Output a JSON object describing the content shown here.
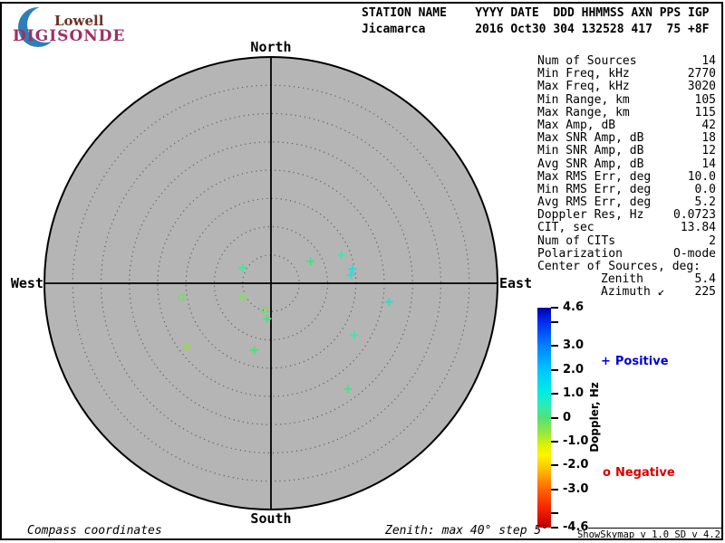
{
  "window": {
    "background": "#ffffff",
    "frame_color": "#000000",
    "plot_fill": "#b5b5b5",
    "ring_color": "#606060"
  },
  "logo": {
    "line1": "Lowell",
    "line2": "DIGISONDE",
    "crescent_color": "#2e7fb8",
    "lowell_color": "#6b3226",
    "digisonde_color": "#9c3166"
  },
  "header": {
    "columns": [
      {
        "label": "STATION NAME",
        "value": "Jicamarca",
        "width": 15,
        "align": "left"
      },
      {
        "label": "YYYY",
        "value": "2016",
        "width": 4,
        "align": "right"
      },
      {
        "label": "DATE",
        "value": "Oct30",
        "width": 5,
        "align": "left"
      },
      {
        "label": "DDD",
        "value": "304",
        "width": 3,
        "align": "right"
      },
      {
        "label": "HHMMSS",
        "value": "132528",
        "width": 6,
        "align": "right"
      },
      {
        "label": "AXN",
        "value": "417",
        "width": 3,
        "align": "right"
      },
      {
        "label": "PPS",
        "value": "75",
        "width": 3,
        "align": "right"
      },
      {
        "label": "IGP",
        "value": "+8F",
        "width": 3,
        "align": "right"
      }
    ]
  },
  "plot": {
    "north": "North",
    "south": "South",
    "west": "West",
    "east": "East"
  },
  "stats": {
    "rows": [
      {
        "label": "Num of Sources",
        "value": "14",
        "indent": false
      },
      {
        "label": "Min Freq, kHz",
        "value": "2770",
        "indent": false
      },
      {
        "label": "Max Freq, kHz",
        "value": "3020",
        "indent": false
      },
      {
        "label": "Min Range, km",
        "value": "105",
        "indent": false
      },
      {
        "label": "Max Range, km",
        "value": "115",
        "indent": false
      },
      {
        "label": "Max Amp, dB",
        "value": "42",
        "indent": false
      },
      {
        "label": "Max SNR Amp, dB",
        "value": "18",
        "indent": false
      },
      {
        "label": "Min SNR Amp, dB",
        "value": "12",
        "indent": false
      },
      {
        "label": "Avg SNR Amp, dB",
        "value": "14",
        "indent": false
      },
      {
        "label": "Max RMS Err, deg",
        "value": "10.0",
        "indent": false
      },
      {
        "label": "Min RMS Err, deg",
        "value": "0.0",
        "indent": false
      },
      {
        "label": "Avg RMS Err, deg",
        "value": "5.2",
        "indent": false
      },
      {
        "label": "Doppler Res, Hz",
        "value": "0.0723",
        "indent": false
      },
      {
        "label": "CIT, sec",
        "value": "13.84",
        "indent": false
      },
      {
        "label": "Num of CITs",
        "value": "2",
        "indent": false
      },
      {
        "label": "Polarization",
        "value": "O-mode",
        "indent": false
      },
      {
        "label": "Center of Sources, deg:",
        "value": "",
        "indent": false
      },
      {
        "label": "Zenith",
        "value": "5.4",
        "indent": true
      },
      {
        "label": "Azimuth ↙",
        "value": "225",
        "indent": true
      }
    ]
  },
  "colorbar": {
    "title": "Doppler, Hz",
    "range": [
      -4.6,
      4.6
    ],
    "ticks": [
      {
        "value": 4.6,
        "label": "4.6"
      },
      {
        "value": 4.0,
        "label": ""
      },
      {
        "value": 3.0,
        "label": "3.0"
      },
      {
        "value": 2.0,
        "label": "2.0"
      },
      {
        "value": 1.0,
        "label": "1.0"
      },
      {
        "value": 0,
        "label": "0"
      },
      {
        "value": -1.0,
        "label": "-1.0"
      },
      {
        "value": -2.0,
        "label": "-2.0"
      },
      {
        "value": -3.0,
        "label": "-3.0"
      },
      {
        "value": -4.0,
        "label": ""
      },
      {
        "value": -4.6,
        "label": "-4.6"
      }
    ],
    "gradient": [
      [
        0,
        "#0000a8"
      ],
      [
        6,
        "#0028f0"
      ],
      [
        17,
        "#0080ff"
      ],
      [
        28,
        "#00c4ff"
      ],
      [
        38,
        "#00ebe4"
      ],
      [
        45,
        "#2fecac"
      ],
      [
        50,
        "#55e078"
      ],
      [
        57,
        "#97e73e"
      ],
      [
        63,
        "#e2f200"
      ],
      [
        67,
        "#fff500"
      ],
      [
        74,
        "#ffbb00"
      ],
      [
        82,
        "#ff6a00"
      ],
      [
        91,
        "#f52500"
      ],
      [
        100,
        "#be0000"
      ]
    ]
  },
  "legend": {
    "positive_marker": "+",
    "positive_label": "Positive",
    "positive_color": "#0000d8",
    "negative_marker": "o",
    "negative_label": "Negative",
    "negative_color": "#d80000"
  },
  "footer": {
    "left": "Compass coordinates",
    "center": "Zenith: max 40°  step 5°",
    "right": "ShowSkymap v 1.0  SD v 4.2"
  },
  "chart_data": {
    "type": "scatter",
    "projection": "polar skymap, compass coordinates (North up, East right)",
    "zenith_max_deg": 40,
    "zenith_step_deg": 5,
    "colorbar_label": "Doppler, Hz",
    "colorbar_range_hz": [
      -4.6,
      4.6
    ],
    "num_sources": 14,
    "points": [
      {
        "azimuth_deg": 299,
        "zenith_deg": 5.7,
        "polarity": "+",
        "doppler_hz_est": 0.8,
        "color": "#3ce79e"
      },
      {
        "azimuth_deg": 61,
        "zenith_deg": 8.0,
        "polarity": "+",
        "doppler_hz_est": 0.5,
        "color": "#41e381"
      },
      {
        "azimuth_deg": 68,
        "zenith_deg": 13.4,
        "polarity": "+",
        "doppler_hz_est": 0.9,
        "color": "#3de7ac"
      },
      {
        "azimuth_deg": 80,
        "zenith_deg": 14.6,
        "polarity": "+",
        "doppler_hz_est": 1.3,
        "color": "#35d7d3"
      },
      {
        "azimuth_deg": 84,
        "zenith_deg": 14.2,
        "polarity": "+",
        "doppler_hz_est": 1.3,
        "color": "#38d9d5"
      },
      {
        "azimuth_deg": 261,
        "zenith_deg": 16.0,
        "polarity": "o",
        "doppler_hz_est": -0.4,
        "color": "#74de62"
      },
      {
        "azimuth_deg": 244,
        "zenith_deg": 5.5,
        "polarity": "o",
        "doppler_hz_est": -0.4,
        "color": "#85df5b"
      },
      {
        "azimuth_deg": 193,
        "zenith_deg": 4.9,
        "polarity": "o",
        "doppler_hz_est": -0.4,
        "color": "#78e060"
      },
      {
        "azimuth_deg": 186,
        "zenith_deg": 6.3,
        "polarity": "+",
        "doppler_hz_est": 0.5,
        "color": "#4be37b"
      },
      {
        "azimuth_deg": 233,
        "zenith_deg": 18.6,
        "polarity": "o",
        "doppler_hz_est": -0.5,
        "color": "#97db4b"
      },
      {
        "azimuth_deg": 194,
        "zenith_deg": 12.2,
        "polarity": "+",
        "doppler_hz_est": 0.5,
        "color": "#50e275"
      },
      {
        "azimuth_deg": 122,
        "zenith_deg": 17.3,
        "polarity": "+",
        "doppler_hz_est": 0.9,
        "color": "#3fe5b0"
      },
      {
        "azimuth_deg": 144,
        "zenith_deg": 23.1,
        "polarity": "+",
        "doppler_hz_est": 0.5,
        "color": "#46e287"
      },
      {
        "azimuth_deg": 99,
        "zenith_deg": 21.1,
        "polarity": "+",
        "doppler_hz_est": 1.2,
        "color": "#39d8cb"
      }
    ],
    "center_of_sources": {
      "zenith_deg": 5.4,
      "azimuth_deg": 225
    }
  }
}
